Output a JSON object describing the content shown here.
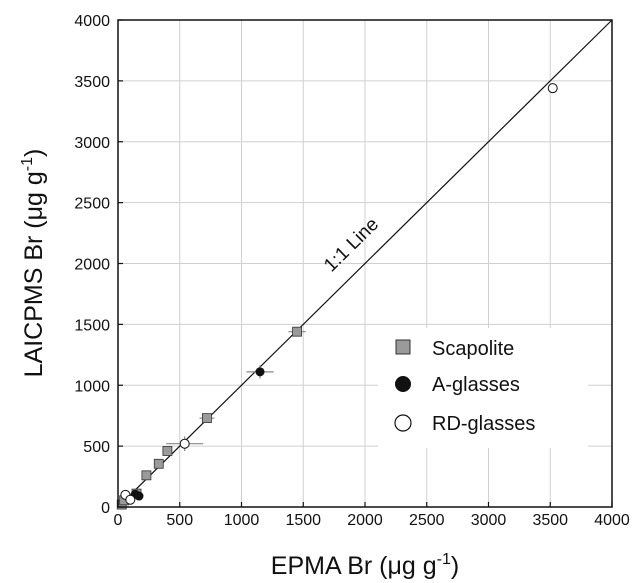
{
  "chart_data": {
    "type": "scatter",
    "xlabel": "EPMA Br (μg g",
    "xlabel_sup": "-1",
    "xlabel_end": ")",
    "ylabel": "LAICPMS Br (μg g",
    "ylabel_sup": "-1",
    "ylabel_end": ")",
    "xlim": [
      0,
      4000
    ],
    "ylim": [
      0,
      4000
    ],
    "xticks": [
      0,
      500,
      1000,
      1500,
      2000,
      2500,
      3000,
      3500,
      4000
    ],
    "yticks": [
      0,
      500,
      1000,
      1500,
      2000,
      2500,
      3000,
      3500,
      4000
    ],
    "xtick_labels": [
      "0",
      "500",
      "1000",
      "1500",
      "2000",
      "2500",
      "3000",
      "3500",
      "4000"
    ],
    "ytick_labels": [
      "0",
      "500",
      "1000",
      "1500",
      "2000",
      "2500",
      "3000",
      "3500",
      "4000"
    ],
    "grid": true,
    "legend_position": "lower-right",
    "annotation": "1:1 Line",
    "reference_line": [
      [
        0,
        0
      ],
      [
        4000,
        4000
      ]
    ],
    "series": [
      {
        "name": "Scapolite",
        "marker": "square",
        "color": "#9a9a9a",
        "points": [
          {
            "x": 30,
            "y": 20,
            "xerr": 15,
            "yerr": 10
          },
          {
            "x": 50,
            "y": 55,
            "xerr": 20,
            "yerr": 15
          },
          {
            "x": 150,
            "y": 110,
            "xerr": 25,
            "yerr": 15
          },
          {
            "x": 230,
            "y": 260,
            "xerr": 25,
            "yerr": 20
          },
          {
            "x": 330,
            "y": 355,
            "xerr": 30,
            "yerr": 20
          },
          {
            "x": 400,
            "y": 460,
            "xerr": 35,
            "yerr": 25
          },
          {
            "x": 720,
            "y": 730,
            "xerr": 60,
            "yerr": 35
          },
          {
            "x": 1450,
            "y": 1440,
            "xerr": 70,
            "yerr": 40
          }
        ]
      },
      {
        "name": "A-glasses",
        "marker": "filled-circle",
        "color": "#111111",
        "points": [
          {
            "x": 140,
            "y": 105,
            "xerr": 30,
            "yerr": 20
          },
          {
            "x": 170,
            "y": 90,
            "xerr": 30,
            "yerr": 20
          },
          {
            "x": 1150,
            "y": 1110,
            "xerr": 110,
            "yerr": 55
          }
        ]
      },
      {
        "name": "RD-glasses",
        "marker": "open-circle",
        "color": "#ffffff",
        "points": [
          {
            "x": 60,
            "y": 100,
            "xerr": 20,
            "yerr": 20
          },
          {
            "x": 100,
            "y": 60,
            "xerr": 20,
            "yerr": 20
          },
          {
            "x": 540,
            "y": 520,
            "xerr": 150,
            "yerr": 60
          },
          {
            "x": 3520,
            "y": 3440,
            "xerr": 0,
            "yerr": 0
          }
        ]
      }
    ]
  }
}
